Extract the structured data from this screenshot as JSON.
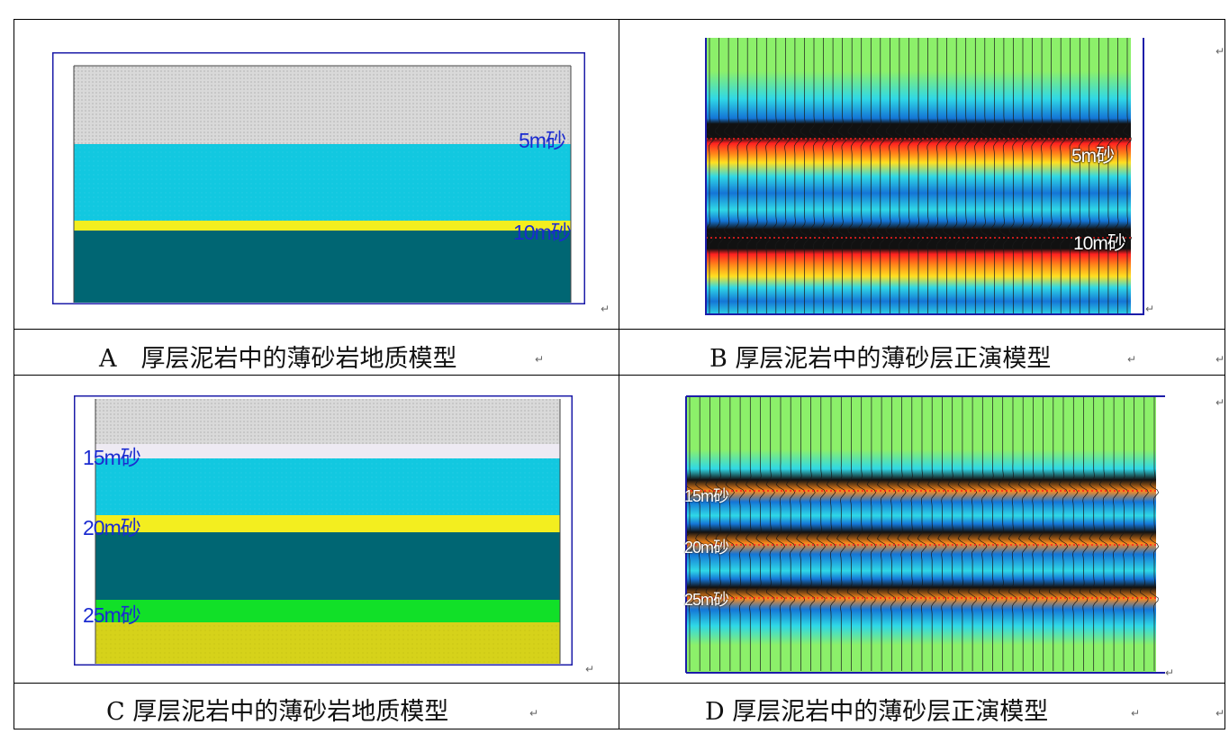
{
  "panels": {
    "a": {
      "caption": "A　厚层泥岩中的薄砂岩地质模型",
      "labels": [
        "5m砂",
        "10m砂"
      ],
      "layer_colors": [
        "#d9d9d9",
        "#12c8e0",
        "#f3ee1f",
        "#006673"
      ]
    },
    "b": {
      "caption": "B  厚层泥岩中的薄砂层正演模型",
      "labels": [
        "5m砂",
        "10m砂"
      ],
      "colors": {
        "background": "#8cf06a",
        "cyan": "#2fd8e6",
        "blue": "#1475d6",
        "black": "#111111",
        "orange": "#ff8a1a",
        "red": "#ff2020"
      }
    },
    "c": {
      "caption": "C  厚层泥岩中的薄砂岩地质模型",
      "labels": [
        "15m砂",
        "20m砂",
        "25m砂"
      ],
      "layer_colors": [
        "#d9d9d9",
        "#eeeaf3",
        "#12c8e0",
        "#f3ee1f",
        "#006673",
        "#11e028",
        "#d6d21a"
      ]
    },
    "d": {
      "caption": "D  厚层泥岩中的薄砂层正演模型",
      "labels": [
        "15m砂",
        "20m砂",
        "25m砂"
      ],
      "colors": {
        "background": "#8cf06a",
        "cyan": "#2fd8e6",
        "blue": "#1475d6",
        "black": "#111111",
        "orange": "#ff8a1a",
        "red": "#ff2020"
      }
    }
  },
  "paragraph_mark": "↵"
}
